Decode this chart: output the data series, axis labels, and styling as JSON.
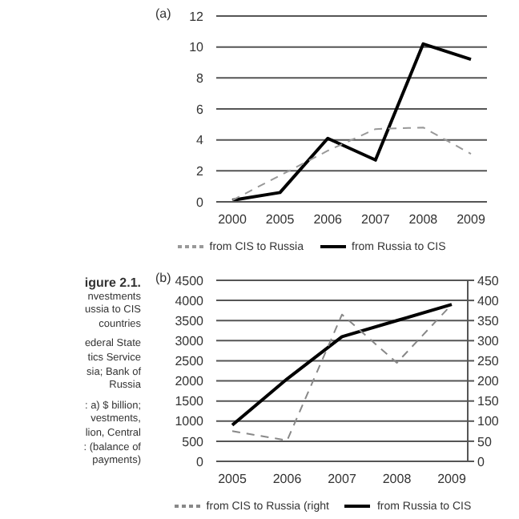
{
  "chart_data": [
    {
      "type": "line",
      "title": "(a)",
      "categories": [
        "2000",
        "2005",
        "2006",
        "2007",
        "2008",
        "2009"
      ],
      "series": [
        {
          "name": "from Russia to CIS",
          "color": "#000000",
          "line_style": "solid",
          "values": [
            0.1,
            0.6,
            4.1,
            2.7,
            10.2,
            9.2
          ]
        },
        {
          "name": "from CIS to Russia",
          "color": "#999999",
          "line_style": "dashed",
          "values": [
            0.1,
            1.7,
            3.3,
            4.7,
            4.8,
            3.1
          ]
        }
      ],
      "ylim": [
        0,
        12
      ],
      "yticks": [
        0,
        2,
        4,
        6,
        8,
        10,
        12
      ],
      "grid": "y",
      "legend": "bottom",
      "marker": "none"
    },
    {
      "type": "line",
      "title": "(b)",
      "categories": [
        "2005",
        "2006",
        "2007",
        "2008",
        "2009"
      ],
      "series": [
        {
          "name": "from Russia to CIS",
          "color": "#000000",
          "line_style": "solid",
          "values": [
            900,
            2050,
            3100,
            3500,
            3900
          ]
        },
        {
          "name": "from CIS to Russia (right",
          "color": "#888888",
          "line_style": "dashed",
          "axis": "y2",
          "values": [
            75,
            52,
            365,
            245,
            390
          ]
        }
      ],
      "ylim": [
        0,
        4500
      ],
      "yticks": [
        0,
        500,
        1000,
        1500,
        2000,
        2500,
        3000,
        3500,
        4000,
        4500
      ],
      "y2lim": [
        0,
        450
      ],
      "y2ticks": [
        0,
        50,
        100,
        150,
        200,
        250,
        300,
        350,
        400,
        450
      ],
      "grid": "y",
      "legend": "bottom",
      "marker": "none",
      "annotations": [
        "igure 2.1.",
        "nvestments",
        "ussia to CIS",
        "countries",
        "ederal State",
        "tics Service",
        "sia; Bank of",
        "Russia",
        ": a) $ billion;",
        "vestments,",
        "lion, Central",
        ": (balance of",
        "payments)"
      ]
    }
  ]
}
